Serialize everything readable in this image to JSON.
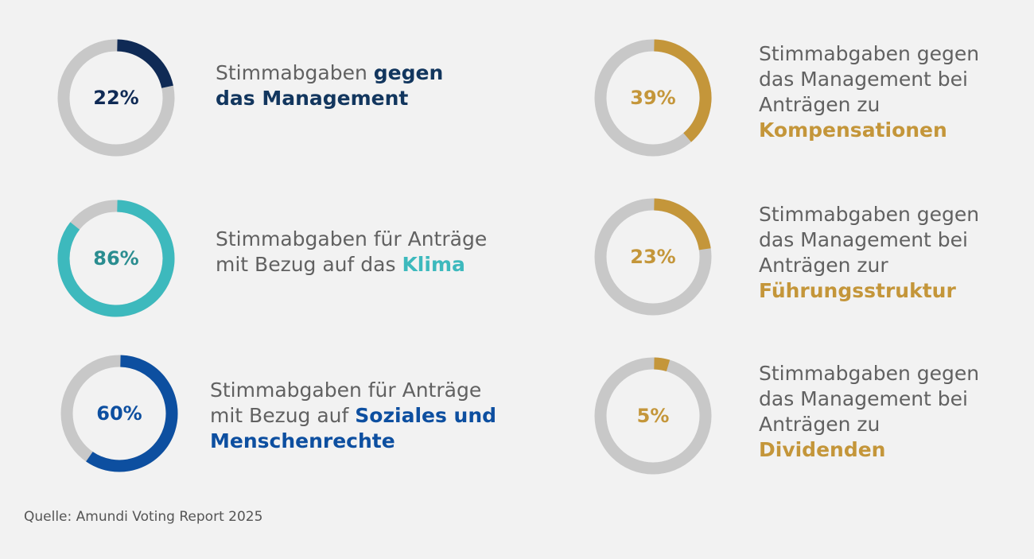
{
  "chart_data": [
    {
      "type": "donut",
      "value": 22,
      "value_label": "22%",
      "text_plain": "Stimmabgaben ",
      "text_highlight_line1": "gegen",
      "text_highlight_line2": "das Management",
      "colors": {
        "arc": "#0f2a55",
        "track": "#c8c8c8",
        "label": "#0f2a55",
        "highlight": "#12365e"
      }
    },
    {
      "type": "donut",
      "value": 86,
      "value_label": "86%",
      "text_line1": "Stimmabgaben für Anträge",
      "text_plain": "mit Bezug auf das ",
      "text_highlight": "Klima",
      "colors": {
        "arc": "#3db9bd",
        "track": "#c8c8c8",
        "label": "#2a8d90",
        "highlight": "#3db9bd"
      }
    },
    {
      "type": "donut",
      "value": 60,
      "value_label": "60%",
      "text_line1": "Stimmabgaben für Anträge",
      "text_plain": "mit Bezug auf ",
      "text_highlight_line1": "Soziales und",
      "text_highlight_line2": "Menschenrechte",
      "colors": {
        "arc": "#0d4fa0",
        "track": "#c8c8c8",
        "label": "#0d4fa0",
        "highlight": "#0d4fa0"
      }
    },
    {
      "type": "donut",
      "value": 39,
      "value_label": "39%",
      "text_line1": "Stimmabgaben gegen",
      "text_line2": "das Management bei",
      "text_line3": "Anträgen zu",
      "text_highlight": "Kompensationen",
      "colors": {
        "arc": "#c4963a",
        "track": "#c8c8c8",
        "label": "#c4963a",
        "highlight": "#c4963a"
      }
    },
    {
      "type": "donut",
      "value": 23,
      "value_label": "23%",
      "text_line1": "Stimmabgaben gegen",
      "text_line2": "das Management bei",
      "text_line3": "Anträgen zur",
      "text_highlight": "Führungsstruktur",
      "colors": {
        "arc": "#c4963a",
        "track": "#c8c8c8",
        "label": "#c4963a",
        "highlight": "#c4963a"
      }
    },
    {
      "type": "donut",
      "value": 5,
      "value_label": "5%",
      "text_line1": "Stimmabgaben gegen",
      "text_line2": "das Management bei",
      "text_line3": "Anträgen zu",
      "text_highlight": "Dividenden",
      "colors": {
        "arc": "#c4963a",
        "track": "#c8c8c8",
        "label": "#c4963a",
        "highlight": "#c4963a"
      }
    }
  ],
  "source": "Quelle: Amundi Voting Report 2025"
}
